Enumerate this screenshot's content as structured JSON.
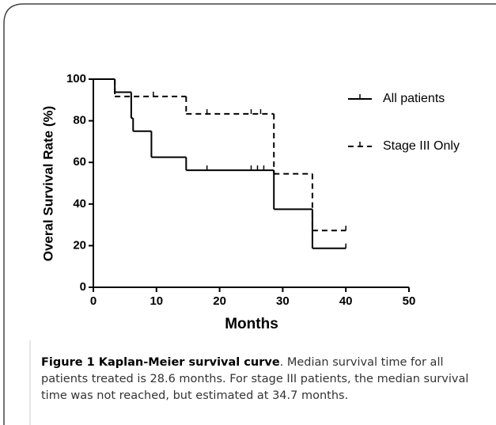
{
  "chart_data": {
    "type": "step",
    "ylabel": "Overal Survival Rate (%)",
    "xlabel": "Months",
    "xlim": [
      0,
      50
    ],
    "xticks": [
      0,
      10,
      20,
      30,
      40,
      50
    ],
    "ylim": [
      0,
      100
    ],
    "yticks": [
      0,
      20,
      40,
      60,
      80,
      100
    ],
    "series": [
      {
        "name": "All patients",
        "color": "#000000",
        "dashed": false,
        "x": [
          0,
          3.4,
          6,
          6.3,
          9.2,
          14.7,
          28.6,
          34.7,
          40
        ],
        "values": [
          100,
          93.75,
          81.25,
          75,
          62.5,
          56.25,
          37.5,
          18.75,
          18.75
        ],
        "censor_x": [
          18,
          25,
          26,
          27,
          40
        ],
        "censor_values": [
          56.25,
          56.25,
          56.25,
          56.25,
          18.75
        ]
      },
      {
        "name": "Stage III Only",
        "color": "#000000",
        "dashed": true,
        "x": [
          0,
          3.4,
          14.7,
          28.6,
          34.7,
          40
        ],
        "values": [
          100,
          91.7,
          83.3,
          54.5,
          27.3,
          27.3
        ],
        "censor_x": [
          9.5,
          18,
          25,
          26.5,
          40
        ],
        "censor_values": [
          91.7,
          83.3,
          83.3,
          83.3,
          27.3
        ]
      }
    ],
    "caption_title": "Figure 1 Kaplan-Meier survival curve",
    "caption_text": ". Median survival time for all patients treated is 28.6 months. For stage III patients, the median survival time was not reached, but estimated at 34.7 months."
  }
}
